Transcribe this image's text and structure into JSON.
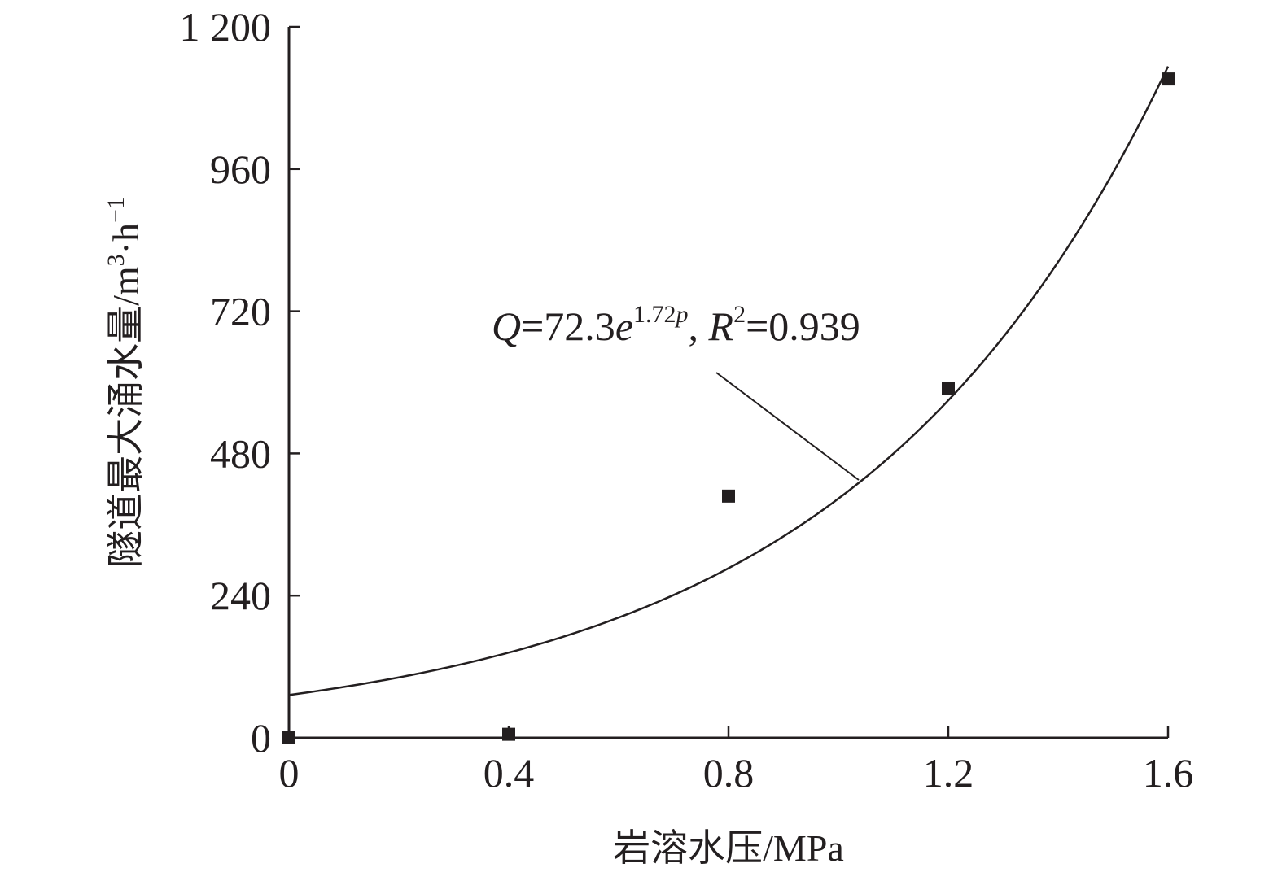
{
  "chart_data": {
    "type": "scatter",
    "xlabel": "岩溶水压/MPa",
    "ylabel_main": "隧道最大涌水量/m",
    "ylabel_sup1": "3",
    "ylabel_mid": "·h",
    "ylabel_sup2": "−1",
    "xlim": [
      0,
      1.6
    ],
    "ylim": [
      0,
      1200
    ],
    "x_ticks": [
      "0",
      "0.4",
      "0.8",
      "1.2",
      "1.6"
    ],
    "y_ticks": [
      "0",
      "240",
      "480",
      "720",
      "960",
      "1 200"
    ],
    "x_tick_values": [
      0,
      0.4,
      0.8,
      1.2,
      1.6
    ],
    "y_tick_values": [
      0,
      240,
      480,
      720,
      960,
      1200
    ],
    "grid": false,
    "series": [
      {
        "marker": "square",
        "x": [
          0,
          0.4,
          0.8,
          1.2,
          1.6
        ],
        "y": [
          1,
          6,
          408,
          590,
          1112
        ]
      }
    ],
    "fit": {
      "a": 72.3,
      "b": 1.72,
      "r2": 0.939,
      "annotation": {
        "q": "Q",
        "eq_main": "=72.3",
        "e": "e",
        "exponent": "1.72",
        "p": "p",
        "sep": ", ",
        "r": "R",
        "r_sup": "2",
        "r_value": "=0.939"
      }
    }
  }
}
